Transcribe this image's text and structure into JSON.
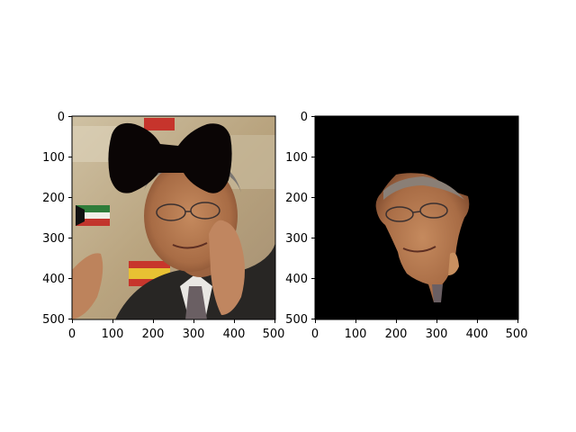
{
  "chart_data": [
    {
      "type": "image",
      "x_ticks": [
        "0",
        "100",
        "200",
        "300",
        "400",
        "500"
      ],
      "y_ticks": [
        "0",
        "100",
        "200",
        "300",
        "400",
        "500"
      ],
      "xlim": [
        0,
        500
      ],
      "ylim": [
        500,
        0
      ],
      "grid": false,
      "image_content": "photo of a man with a black bow-tie shaped mask over the upper part of the image",
      "colors": {
        "mask": "#0a0505",
        "background": "#d6c8a5",
        "suit": "#262422"
      }
    },
    {
      "type": "image",
      "x_ticks": [
        "0",
        "100",
        "200",
        "300",
        "400",
        "500"
      ],
      "y_ticks": [
        "0",
        "100",
        "200",
        "300",
        "400",
        "500"
      ],
      "xlim": [
        0,
        500
      ],
      "ylim": [
        500,
        0
      ],
      "grid": false,
      "image_content": "segmented face region on black background",
      "colors": {
        "background": "#000000",
        "skin": "#b67a52"
      }
    }
  ]
}
